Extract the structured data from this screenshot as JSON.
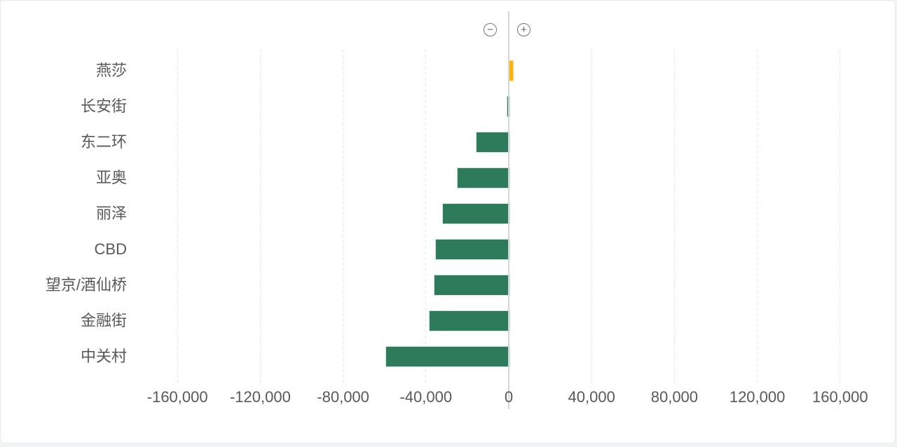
{
  "chart_data": {
    "type": "bar",
    "orientation": "horizontal",
    "title": "",
    "xlabel": "",
    "ylabel": "",
    "categories": [
      "燕莎",
      "长安街",
      "东二环",
      "亚奥",
      "丽泽",
      "CBD",
      "望京/酒仙桥",
      "金融街",
      "中关村"
    ],
    "values": [
      2000,
      -1000,
      -16000,
      -25000,
      -32000,
      -35500,
      -36200,
      -38600,
      -59500
    ],
    "xlim": [
      -180000,
      180000
    ],
    "x_ticks": [
      -160000,
      -120000,
      -80000,
      -40000,
      0,
      40000,
      80000,
      120000,
      160000
    ],
    "x_tick_labels": [
      "-160,000",
      "-120,000",
      "-80,000",
      "-40,000",
      "0",
      "40,000",
      "80,000",
      "120,000",
      "160,000"
    ],
    "grid": "vertical-dashed",
    "legend": "none",
    "bar_color_positive": "#fcb402",
    "bar_color_negative": "#2e7b5c"
  },
  "toolbar": {
    "zoom_out_label": "−",
    "zoom_in_label": "+"
  },
  "colors": {
    "axis_line": "#d4d7da",
    "gridline": "#e3e5e8",
    "text": "#595959",
    "card_background": "#ffffff",
    "page_background": "#f2f3f5"
  }
}
